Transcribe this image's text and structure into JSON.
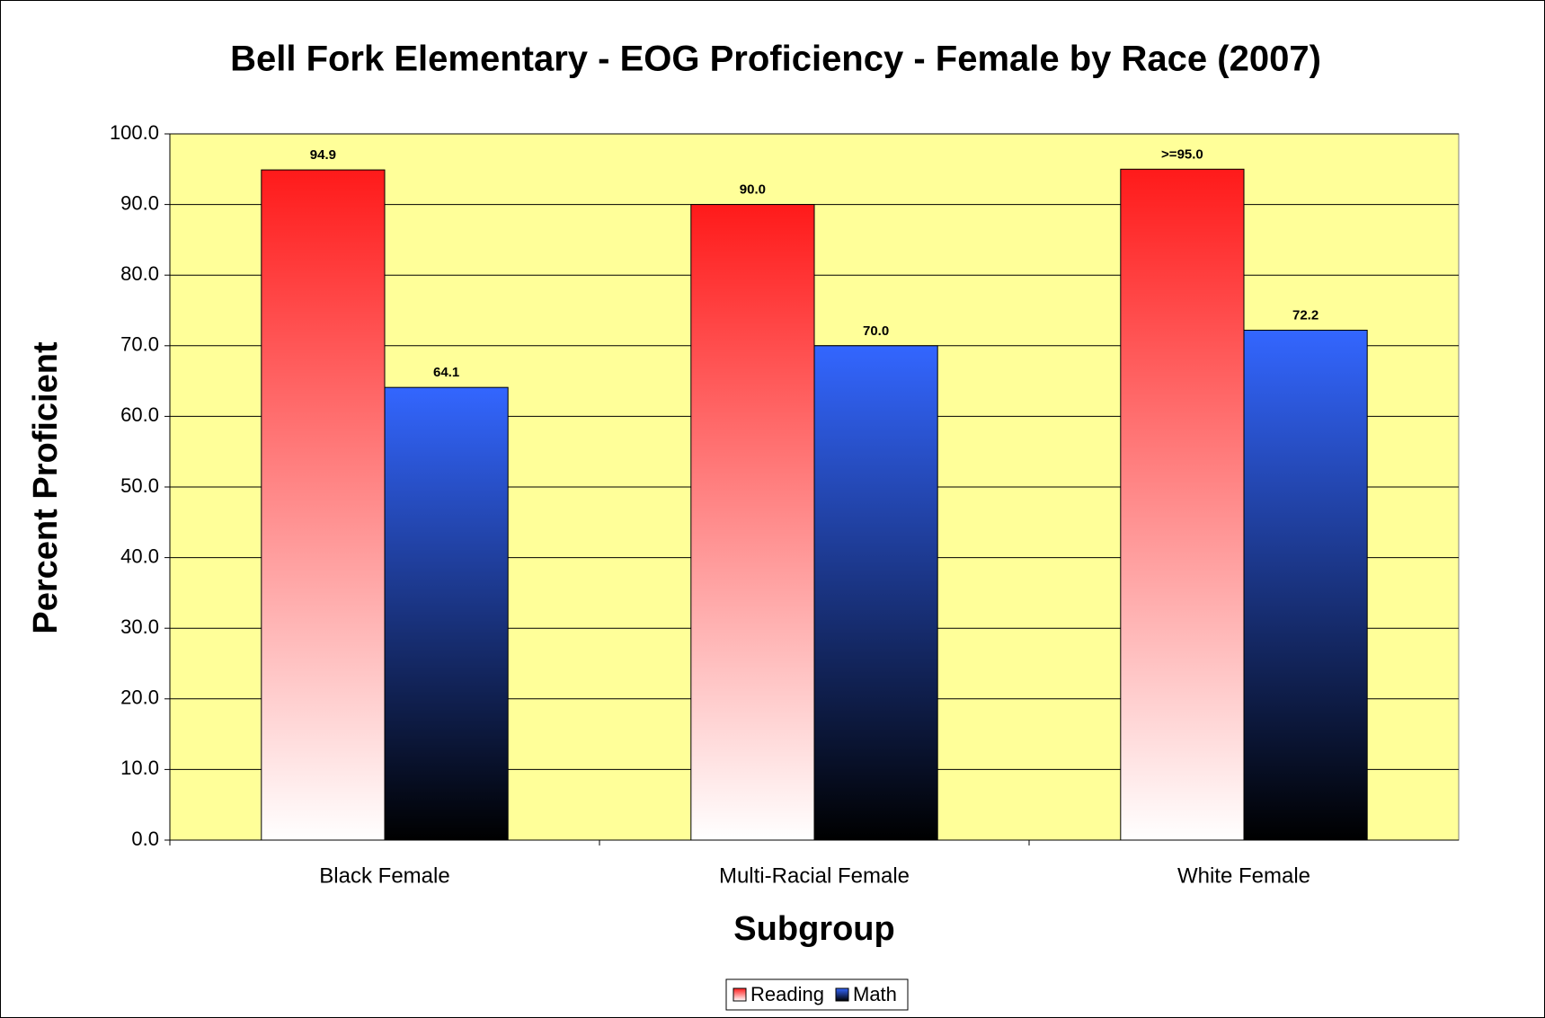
{
  "chart_data": {
    "type": "bar",
    "title": "Bell Fork Elementary - EOG Proficiency - Female by Race (2007)",
    "x_label": "Subgroup",
    "y_label": "Percent Proficient",
    "categories": [
      "Black Female",
      "Multi-Racial Female",
      "White Female"
    ],
    "series": [
      {
        "name": "Reading",
        "color": "#ff1a1a",
        "values": [
          94.9,
          90.0,
          95.0
        ],
        "value_labels": [
          "94.9",
          "90.0",
          ">=95.0"
        ]
      },
      {
        "name": "Math",
        "color": "#3366ff",
        "values": [
          64.1,
          70.0,
          72.2
        ],
        "value_labels": [
          "64.1",
          "70.0",
          "72.2"
        ]
      }
    ],
    "ylim": [
      0,
      100
    ],
    "yticks": [
      {
        "value": 0,
        "label": "0.0"
      },
      {
        "value": 10,
        "label": "10.0"
      },
      {
        "value": 20,
        "label": "20.0"
      },
      {
        "value": 30,
        "label": "30.0"
      },
      {
        "value": 40,
        "label": "40.0"
      },
      {
        "value": 50,
        "label": "50.0"
      },
      {
        "value": 60,
        "label": "60.0"
      },
      {
        "value": 70,
        "label": "70.0"
      },
      {
        "value": 80,
        "label": "80.0"
      },
      {
        "value": 90,
        "label": "90.0"
      },
      {
        "value": 100,
        "label": "100.0"
      }
    ],
    "grid": true,
    "legend": "bottom"
  }
}
